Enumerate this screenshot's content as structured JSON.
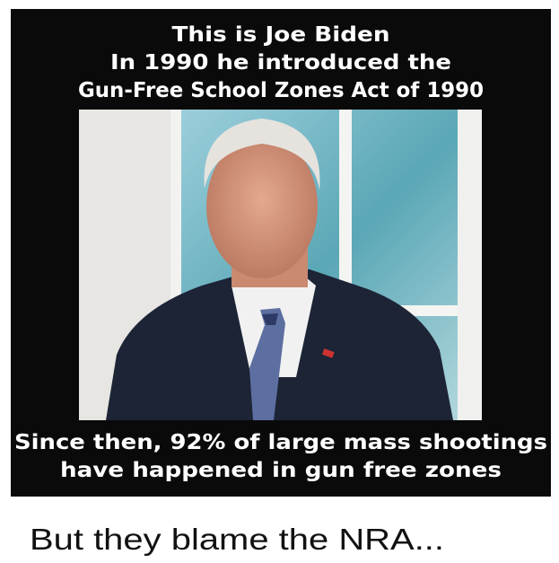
{
  "meme": {
    "top_text": [
      "This is Joe Biden",
      "In 1990 he introduced the",
      "Gun-Free School Zones Act of 1990"
    ],
    "bottom_text": [
      "Since then, 92% of large mass shootings",
      "have happened in gun free zones"
    ],
    "caption": "But they blame the NRA..."
  }
}
